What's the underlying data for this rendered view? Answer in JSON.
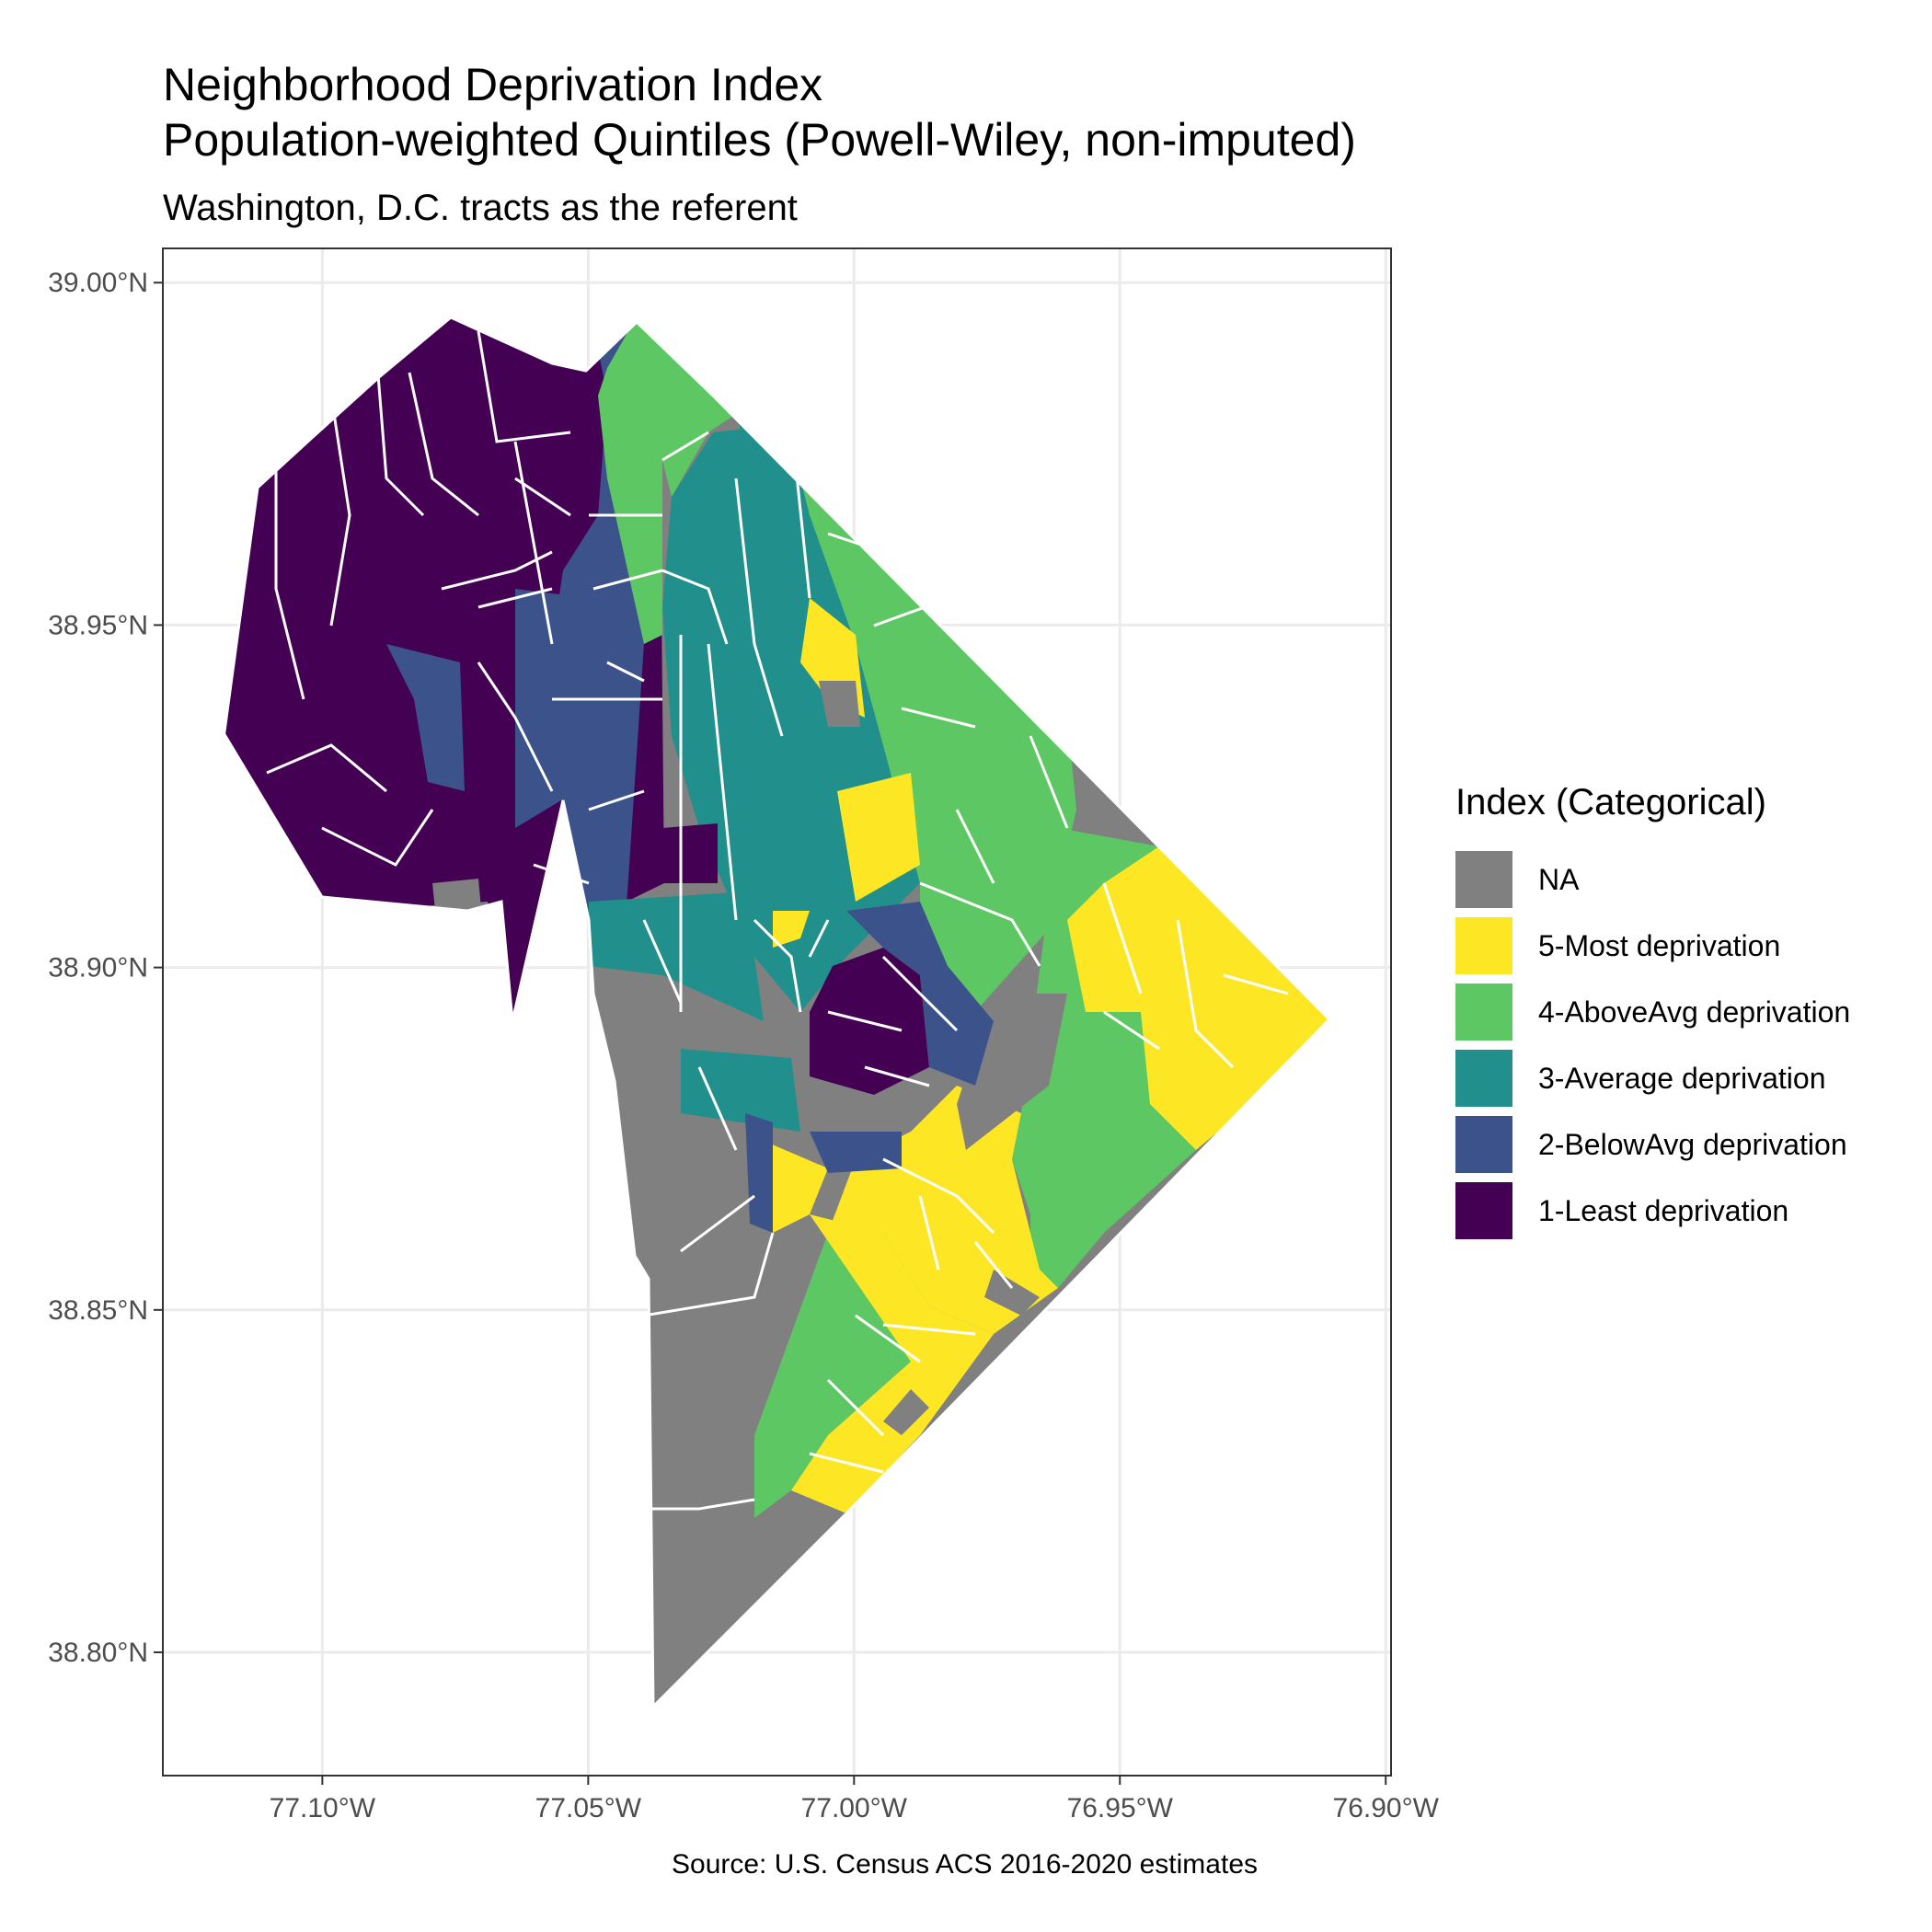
{
  "title": "Neighborhood Deprivation Index",
  "title_line2": "Population-weighted Quintiles (Powell-Wiley, non-imputed)",
  "subtitle": "Washington, D.C. tracts as the referent",
  "caption": "Source: U.S. Census ACS 2016-2020 estimates",
  "legend": {
    "title": "Index (Categorical)",
    "items": [
      {
        "label": "NA",
        "color": "#808080"
      },
      {
        "label": "5-Most deprivation",
        "color": "#FDE725"
      },
      {
        "label": "4-AboveAvg deprivation",
        "color": "#5DC863"
      },
      {
        "label": "3-Average deprivation",
        "color": "#21908C"
      },
      {
        "label": "2-BelowAvg deprivation",
        "color": "#3B528B"
      },
      {
        "label": "1-Least deprivation",
        "color": "#440154"
      }
    ]
  },
  "axes": {
    "x_ticks": [
      "77.10°W",
      "77.05°W",
      "77.00°W",
      "76.95°W",
      "76.90°W"
    ],
    "x_values": [
      -77.1,
      -77.05,
      -77.0,
      -76.95,
      -76.9
    ],
    "y_ticks": [
      "39.00°N",
      "38.95°N",
      "38.90°N",
      "38.85°N",
      "38.80°N"
    ],
    "y_values": [
      39.0,
      38.95,
      38.9,
      38.85,
      38.8
    ],
    "x_range": [
      -77.13,
      -76.899
    ],
    "y_range": [
      38.782,
      39.005
    ],
    "grid": true
  }
}
